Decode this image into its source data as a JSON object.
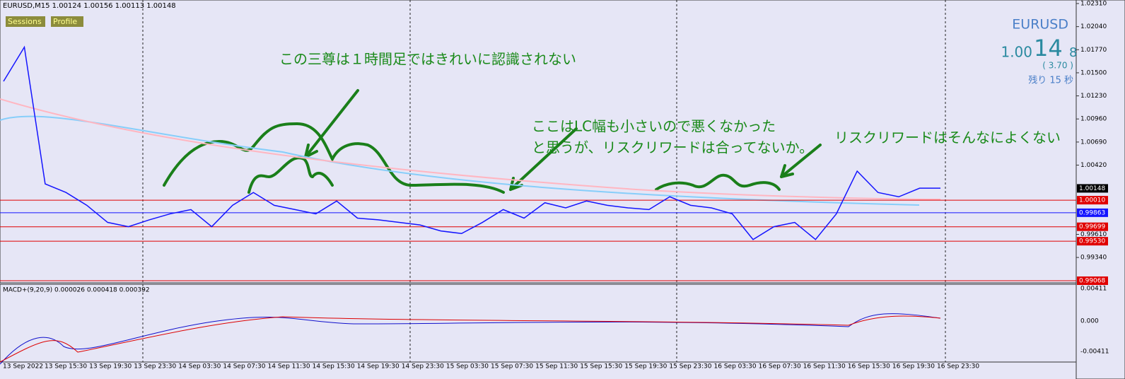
{
  "header": {
    "symbol_info": "EURUSD,M15  1.00124 1.00156 1.00113 1.00148",
    "buttons": [
      "Sessions",
      "Profile"
    ]
  },
  "quote": {
    "symbol": "EURUSD",
    "price_main": "1.00",
    "price_big": "14",
    "price_small": "8",
    "spread": "( 3.70 )",
    "remaining": "残り 15 秒"
  },
  "annotations": [
    "この三尊は１時間足ではきれいに認識されない",
    "ここはLC幅も小さいので悪くなかった",
    "と思うが、リスクリワードは合ってないか。",
    "リスクリワードはそんなによくない"
  ],
  "price_axis": [
    {
      "text": "1.02310",
      "kind": "plain"
    },
    {
      "text": "1.02040",
      "kind": "plain"
    },
    {
      "text": "1.01770",
      "kind": "plain"
    },
    {
      "text": "1.01500",
      "kind": "plain"
    },
    {
      "text": "1.01230",
      "kind": "plain"
    },
    {
      "text": "1.00960",
      "kind": "plain"
    },
    {
      "text": "1.00690",
      "kind": "plain"
    },
    {
      "text": "1.00420",
      "kind": "plain"
    },
    {
      "text": "1.00148",
      "kind": "last"
    },
    {
      "text": "1.00010",
      "kind": "red"
    },
    {
      "text": "0.99863",
      "kind": "blue"
    },
    {
      "text": "0.99699",
      "kind": "red"
    },
    {
      "text": "0.99610",
      "kind": "plain"
    },
    {
      "text": "0.99530",
      "kind": "red"
    },
    {
      "text": "0.99340",
      "kind": "plain"
    },
    {
      "text": "0.99068",
      "kind": "red"
    }
  ],
  "price_series": [
    1.014,
    1.018,
    1.002,
    1.001,
    0.9995,
    0.9975,
    0.997,
    0.9978,
    0.9985,
    0.999,
    0.997,
    0.9995,
    1.001,
    0.9995,
    0.999,
    0.9985,
    1.0,
    0.998,
    0.9978,
    0.9975,
    0.9972,
    0.9965,
    0.9962,
    0.9975,
    0.999,
    0.998,
    0.9998,
    0.9992,
    1.0,
    0.9995,
    0.9992,
    0.999,
    1.0005,
    0.9995,
    0.9992,
    0.9985,
    0.9955,
    0.997,
    0.9975,
    0.9955,
    0.9985,
    1.0035,
    1.001,
    1.0005,
    1.0015,
    1.0015
  ],
  "macd": {
    "label": "MACD+(9,20,9) 0.000026 0.000418 0.000392",
    "axis": [
      "0.00411",
      "0.000",
      "-0.00411"
    ]
  },
  "time_axis": [
    "13 Sep 2022",
    "13 Sep 15:30",
    "13 Sep 19:30",
    "13 Sep 23:30",
    "14 Sep 03:30",
    "14 Sep 07:30",
    "14 Sep 11:30",
    "14 Sep 15:30",
    "14 Sep 19:30",
    "14 Sep 23:30",
    "15 Sep 03:30",
    "15 Sep 07:30",
    "15 Sep 11:30",
    "15 Sep 15:30",
    "15 Sep 19:30",
    "15 Sep 23:30",
    "16 Sep 03:30",
    "16 Sep 07:30",
    "16 Sep 11:30",
    "16 Sep 15:30",
    "16 Sep 19:30",
    "16 Sep 23:30"
  ]
}
